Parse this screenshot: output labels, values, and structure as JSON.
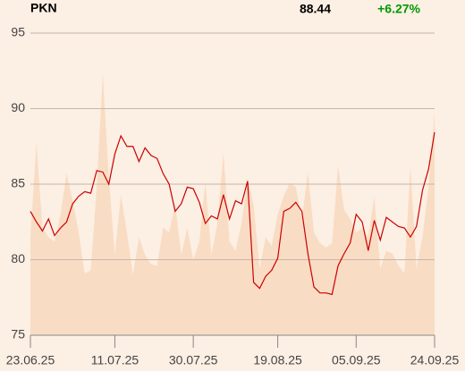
{
  "chart_data": {
    "type": "line",
    "title": "PKN",
    "price": "88.44",
    "change": "+6.27%",
    "categories": [
      "23.06.25",
      null,
      null,
      null,
      null,
      null,
      null,
      null,
      null,
      null,
      null,
      null,
      null,
      null,
      "11.07.25",
      null,
      null,
      null,
      null,
      null,
      null,
      null,
      null,
      null,
      null,
      null,
      null,
      "30.07.25",
      null,
      null,
      null,
      null,
      null,
      null,
      null,
      null,
      null,
      null,
      null,
      null,
      null,
      "19.08.25",
      null,
      null,
      null,
      null,
      null,
      null,
      null,
      null,
      null,
      null,
      null,
      null,
      "05.09.25",
      null,
      null,
      null,
      null,
      null,
      null,
      null,
      null,
      null,
      null,
      null,
      null,
      "24.09.25"
    ],
    "series": [
      {
        "type": "area",
        "color": "#f9dcc4",
        "values": [
          81.5,
          87.7,
          82.1,
          81.5,
          81.2,
          83.0,
          85.7,
          83.9,
          81.8,
          79.1,
          79.3,
          84.8,
          92.3,
          85.4,
          80.3,
          84.3,
          81.8,
          79.0,
          81.5,
          80.3,
          79.7,
          79.6,
          82.1,
          81.8,
          83.7,
          80.3,
          82.1,
          80.0,
          81.2,
          85.1,
          80.3,
          82.4,
          87.1,
          81.2,
          80.6,
          82.4,
          85.4,
          83.6,
          79.4,
          81.5,
          80.9,
          83.0,
          84.2,
          85.1,
          84.8,
          82.7,
          85.8,
          81.8,
          81.1,
          80.8,
          81.1,
          86.2,
          83.3,
          82.7,
          81.8,
          82.1,
          81.5,
          84.2,
          79.4,
          80.6,
          80.4,
          79.6,
          79.1,
          86.2,
          79.4,
          81.5,
          84.8,
          89.8
        ]
      },
      {
        "type": "line",
        "color": "#cc0000",
        "values": [
          83.2,
          82.5,
          81.9,
          82.7,
          81.6,
          82.1,
          82.5,
          83.7,
          84.2,
          84.5,
          84.4,
          85.9,
          85.8,
          85.0,
          87.0,
          88.2,
          87.5,
          87.5,
          86.5,
          87.4,
          86.9,
          86.7,
          85.7,
          85.0,
          83.2,
          83.7,
          84.8,
          84.7,
          83.8,
          82.4,
          82.9,
          82.7,
          84.3,
          82.7,
          83.9,
          83.7,
          85.2,
          78.5,
          78.1,
          78.9,
          79.3,
          80.1,
          83.2,
          83.4,
          83.8,
          83.2,
          80.4,
          78.2,
          77.8,
          77.8,
          77.7,
          79.6,
          80.4,
          81.1,
          83.0,
          82.5,
          80.6,
          82.6,
          81.3,
          82.8,
          82.5,
          82.2,
          82.1,
          81.5,
          82.2,
          84.6,
          86.0,
          88.44
        ]
      }
    ],
    "ylim": [
      75,
      95
    ],
    "yticks": [
      75,
      80,
      85,
      90,
      95
    ],
    "grid": true,
    "price_color": "#000000",
    "change_color": "#009900"
  }
}
